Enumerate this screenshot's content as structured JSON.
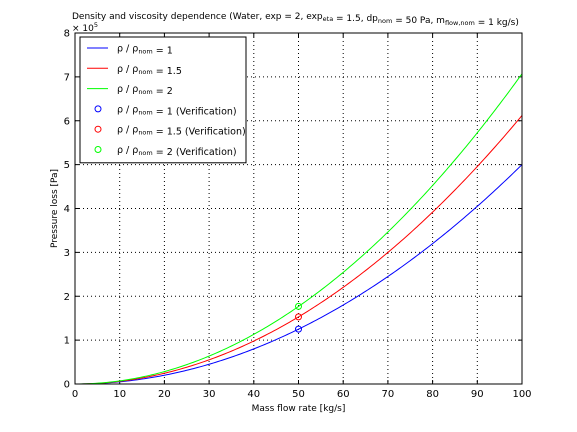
{
  "chart_data": {
    "type": "line",
    "title_parts": [
      {
        "t": "Density and viscosity dependence (Water, exp = 2, exp"
      },
      {
        "t": "eta",
        "sub": true
      },
      {
        "t": " = 1.5, dp"
      },
      {
        "t": "nom",
        "sub": true
      },
      {
        "t": " = 50 Pa, m"
      },
      {
        "t": "flow,nom",
        "sub": true
      },
      {
        "t": " = 1 kg/s)"
      }
    ],
    "xlabel": "Mass flow rate [kg/s]",
    "ylabel": "Pressure loss [Pa]",
    "y_multiplier": "× 10",
    "y_multiplier_exp": "5",
    "xlim": [
      0,
      100
    ],
    "ylim": [
      0,
      8
    ],
    "x_ticks": [
      "0",
      "10",
      "20",
      "30",
      "40",
      "50",
      "60",
      "70",
      "80",
      "90",
      "100"
    ],
    "y_ticks": [
      "0",
      "1",
      "2",
      "3",
      "4",
      "5",
      "6",
      "7",
      "8"
    ],
    "grid": true,
    "legend_position": "top-left",
    "curve_model": "y = c * x^2 (values in units of 10^5 Pa)",
    "series": [
      {
        "name_main": "ρ / ρ",
        "name_sub": "nom",
        "name_tail": " = 1",
        "color": "#0000ff",
        "style": "line",
        "coef": 0.0005
      },
      {
        "name_main": "ρ / ρ",
        "name_sub": "nom",
        "name_tail": " = 1.5",
        "color": "#ff0000",
        "style": "line",
        "coef": 0.000612
      },
      {
        "name_main": "ρ / ρ",
        "name_sub": "nom",
        "name_tail": " = 2",
        "color": "#00ff00",
        "style": "line",
        "coef": 0.000707
      },
      {
        "name_main": "ρ / ρ",
        "name_sub": "nom",
        "name_tail": " = 1 (Verification)",
        "color": "#0000ff",
        "style": "marker",
        "x": 50,
        "y": 1.25
      },
      {
        "name_main": "ρ / ρ",
        "name_sub": "nom",
        "name_tail": " = 1.5 (Verification)",
        "color": "#ff0000",
        "style": "marker",
        "x": 50,
        "y": 1.53
      },
      {
        "name_main": "ρ / ρ",
        "name_sub": "nom",
        "name_tail": " = 2 (Verification)",
        "color": "#00ff00",
        "style": "marker",
        "x": 50,
        "y": 1.77
      }
    ]
  }
}
